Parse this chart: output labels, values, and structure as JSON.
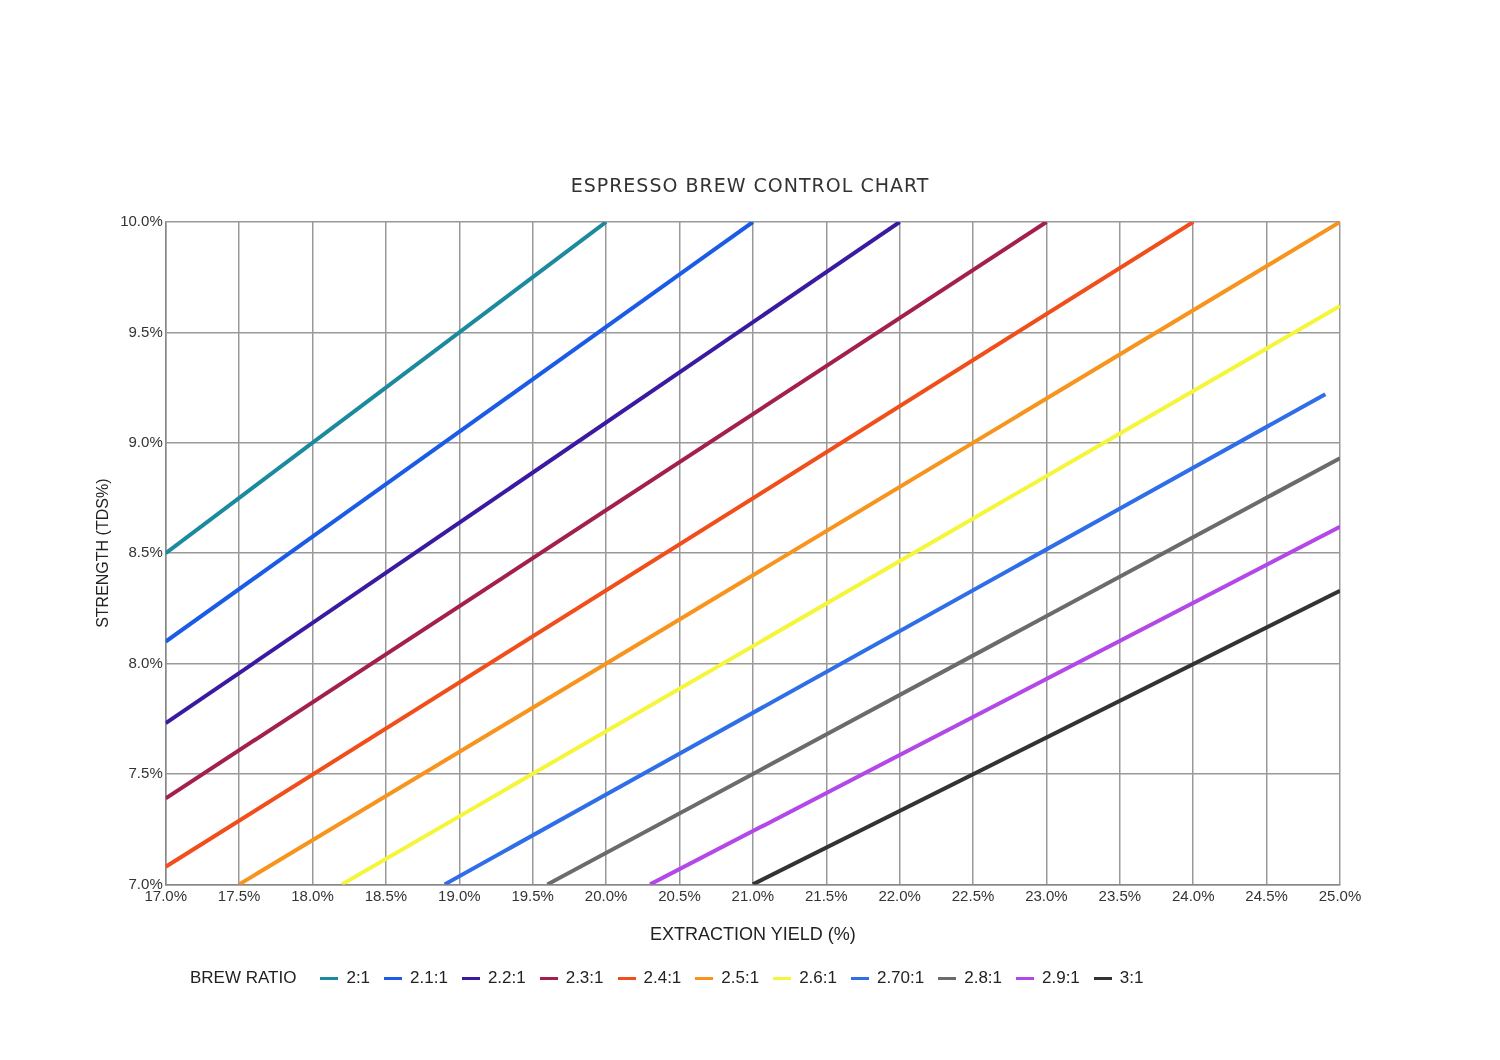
{
  "chart_data": {
    "type": "line",
    "title": "ESPRESSO BREW CONTROL CHART",
    "xlabel": "EXTRACTION YIELD (%)",
    "ylabel": "STRENGTH (TDS%)",
    "legend_title": "BREW RATIO",
    "legend": "bottom",
    "grid": true,
    "marker": "none",
    "xlim": [
      17,
      25
    ],
    "ylim": [
      7,
      10
    ],
    "xticks": [
      {
        "value": 17,
        "label": "17.0%"
      },
      {
        "value": 17.5,
        "label": "17.5%"
      },
      {
        "value": 18,
        "label": "18.0%"
      },
      {
        "value": 18.5,
        "label": "18.5%"
      },
      {
        "value": 19,
        "label": "19.0%"
      },
      {
        "value": 19.5,
        "label": "19.5%"
      },
      {
        "value": 20,
        "label": "20.0%"
      },
      {
        "value": 20.5,
        "label": "20.5%"
      },
      {
        "value": 21,
        "label": "21.0%"
      },
      {
        "value": 21.5,
        "label": "21.5%"
      },
      {
        "value": 22,
        "label": "22.0%"
      },
      {
        "value": 22.5,
        "label": "22.5%"
      },
      {
        "value": 23,
        "label": "23.0%"
      },
      {
        "value": 23.5,
        "label": "23.5%"
      },
      {
        "value": 24,
        "label": "24.0%"
      },
      {
        "value": 24.5,
        "label": "24.5%"
      },
      {
        "value": 25,
        "label": "25.0%"
      }
    ],
    "yticks": [
      {
        "value": 7,
        "label": "7.0%"
      },
      {
        "value": 7.5,
        "label": "7.5%"
      },
      {
        "value": 8,
        "label": "8.0%"
      },
      {
        "value": 8.5,
        "label": "8.5%"
      },
      {
        "value": 9,
        "label": "9.0%"
      },
      {
        "value": 9.5,
        "label": "9.5%"
      },
      {
        "value": 10,
        "label": "10.0%"
      }
    ],
    "series": [
      {
        "name": "2:1",
        "color": "#1b8a9e",
        "x": [
          17,
          20
        ],
        "values": [
          8.5,
          10
        ]
      },
      {
        "name": "2.1:1",
        "color": "#1a5ce6",
        "x": [
          17,
          21
        ],
        "values": [
          8.1,
          10
        ]
      },
      {
        "name": "2.2:1",
        "color": "#3a1aa0",
        "x": [
          17,
          22
        ],
        "values": [
          7.73,
          10
        ]
      },
      {
        "name": "2.3:1",
        "color": "#a3204a",
        "x": [
          17,
          23
        ],
        "values": [
          7.39,
          10
        ]
      },
      {
        "name": "2.4:1",
        "color": "#f04e1a",
        "x": [
          17,
          24
        ],
        "values": [
          7.08,
          10
        ]
      },
      {
        "name": "2.5:1",
        "color": "#f7941d",
        "x": [
          17.5,
          25
        ],
        "values": [
          7,
          10
        ]
      },
      {
        "name": "2.6:1",
        "color": "#f5f53a",
        "x": [
          18.2,
          25
        ],
        "values": [
          7,
          9.62
        ]
      },
      {
        "name": "2.70:1",
        "color": "#2f6ee8",
        "x": [
          18.9,
          24.9
        ],
        "values": [
          7,
          9.22
        ]
      },
      {
        "name": "2.8:1",
        "color": "#6b6b6b",
        "x": [
          19.6,
          25
        ],
        "values": [
          7,
          8.93
        ]
      },
      {
        "name": "2.9:1",
        "color": "#b348e8",
        "x": [
          20.3,
          25
        ],
        "values": [
          7,
          8.62
        ]
      },
      {
        "name": "3:1",
        "color": "#333333",
        "x": [
          21,
          25
        ],
        "values": [
          7,
          8.33
        ]
      }
    ]
  }
}
